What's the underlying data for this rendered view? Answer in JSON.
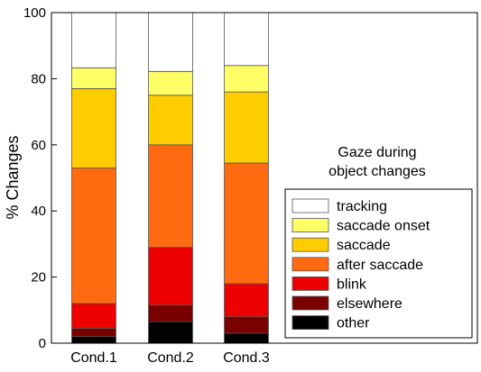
{
  "chart_data": {
    "type": "bar",
    "stacked": true,
    "categories": [
      "Cond.1",
      "Cond.2",
      "Cond.3"
    ],
    "ylabel": "% Changes",
    "ylim": [
      0,
      100
    ],
    "yticks": [
      0,
      20,
      40,
      60,
      80,
      100
    ],
    "grid": false,
    "legend_position": "bottom-right",
    "annotation": {
      "line1": "Gaze during",
      "line2": "object changes"
    },
    "series": [
      {
        "name": "other",
        "color": "#000000",
        "values": [
          2.0,
          6.5,
          3.0
        ]
      },
      {
        "name": "elsewhere",
        "color": "#7a0000",
        "values": [
          2.5,
          5.0,
          5.0
        ]
      },
      {
        "name": "blink",
        "color": "#ee0000",
        "values": [
          7.5,
          17.5,
          10.0
        ]
      },
      {
        "name": "after saccade",
        "color": "#ff6a10",
        "values": [
          41.0,
          31.0,
          36.5
        ]
      },
      {
        "name": "saccade",
        "color": "#ffcc00",
        "values": [
          24.0,
          15.0,
          21.5
        ]
      },
      {
        "name": "saccade onset",
        "color": "#ffff66",
        "values": [
          6.3,
          7.2,
          8.0
        ]
      },
      {
        "name": "tracking",
        "color": "#ffffff",
        "values": [
          16.7,
          17.8,
          16.0
        ]
      }
    ]
  }
}
